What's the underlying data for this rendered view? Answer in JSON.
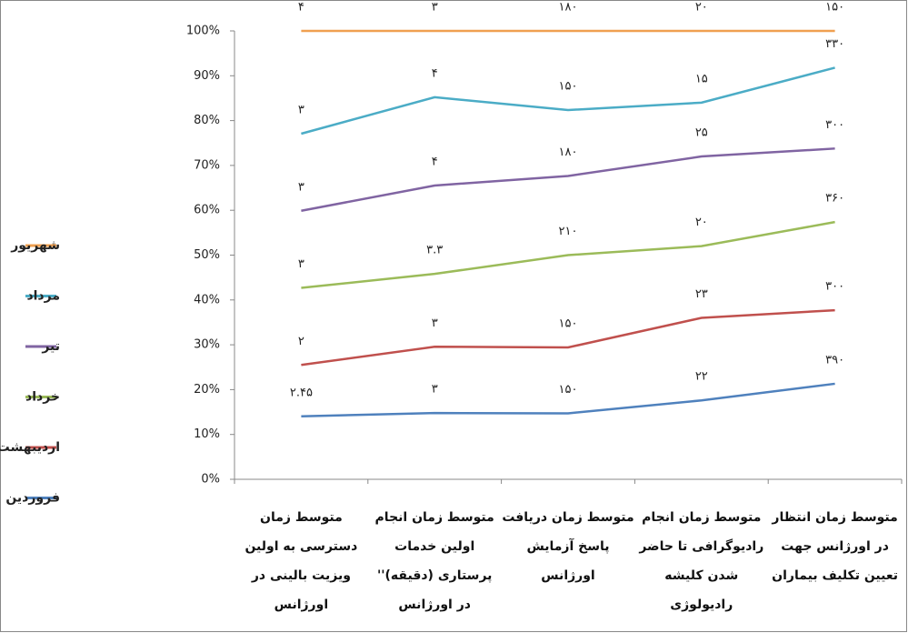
{
  "chart_data": {
    "type": "line",
    "stacking": "percent",
    "categories": [
      "متوسط زمان دسترسی به اولین ویزیت بالینی در اورژانس",
      "متوسط زمان انجام اولین خدمات پرستاری (دقیقه)'' در اورژانس",
      "متوسط زمان دریافت پاسخ آزمایش اورژانس",
      "متوسط زمان انجام رادیوگرافی تا حاضر شدن کلیشه رادیولوژی",
      "متوسط زمان انتظار در اورژانس جهت تعیین تکلیف بیماران"
    ],
    "series": [
      {
        "name": "فروردین",
        "color": "#4f81bd",
        "values": [
          2.45,
          3,
          150,
          22,
          390
        ],
        "value_labels": [
          "۲.۴۵",
          "۳",
          "۱۵۰",
          "۲۲",
          "۳۹۰"
        ]
      },
      {
        "name": "اردیبهشت",
        "color": "#c0504d",
        "values": [
          2,
          3,
          150,
          23,
          300
        ],
        "value_labels": [
          "۲",
          "۳",
          "۱۵۰",
          "۲۳",
          "۳۰۰"
        ]
      },
      {
        "name": "خرداد",
        "color": "#9bbb59",
        "values": [
          3,
          3.3,
          210,
          20,
          360
        ],
        "value_labels": [
          "۳",
          "۳.۳",
          "۲۱۰",
          "۲۰",
          "۳۶۰"
        ]
      },
      {
        "name": "تیر",
        "color": "#8064a2",
        "values": [
          3,
          4,
          180,
          25,
          300
        ],
        "value_labels": [
          "۳",
          "۴",
          "۱۸۰",
          "۲۵",
          "۳۰۰"
        ]
      },
      {
        "name": "مرداد",
        "color": "#4bacc6",
        "values": [
          3,
          4,
          150,
          15,
          330
        ],
        "value_labels": [
          "۳",
          "۴",
          "۱۵۰",
          "۱۵",
          "۳۳۰"
        ]
      },
      {
        "name": "شهریور",
        "color": "#f0a050",
        "values": [
          4,
          3,
          180,
          20,
          150
        ],
        "value_labels": [
          "۴",
          "۳",
          "۱۸۰",
          "۲۰",
          "۱۵۰"
        ]
      }
    ],
    "ylim": [
      0,
      100
    ],
    "yticks": [
      {
        "value": 0,
        "label": "0%"
      },
      {
        "value": 10,
        "label": "10%"
      },
      {
        "value": 20,
        "label": "20%"
      },
      {
        "value": 30,
        "label": "30%"
      },
      {
        "value": 40,
        "label": "40%"
      },
      {
        "value": 50,
        "label": "50%"
      },
      {
        "value": 60,
        "label": "60%"
      },
      {
        "value": 70,
        "label": "70%"
      },
      {
        "value": 80,
        "label": "80%"
      },
      {
        "value": 90,
        "label": "90%"
      },
      {
        "value": 100,
        "label": "100%"
      }
    ],
    "legend": "left"
  }
}
